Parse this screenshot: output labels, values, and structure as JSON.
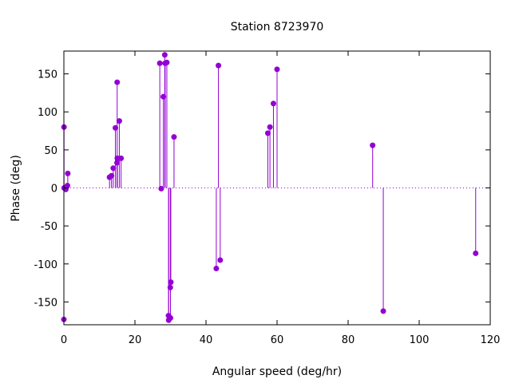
{
  "chart_data": {
    "type": "scatter",
    "style": "impulses-with-points",
    "title": "Station 8723970",
    "xlabel": "Angular speed (deg/hr)",
    "ylabel": "Phase (deg)",
    "xlim": [
      0,
      120
    ],
    "ylim": [
      -180,
      180
    ],
    "xticks": [
      0,
      20,
      40,
      60,
      80,
      100,
      120
    ],
    "yticks": [
      -150,
      -100,
      -50,
      0,
      50,
      100,
      150
    ],
    "zero_line": "dotted",
    "grid": false,
    "legend": "none",
    "color": "#9400d3",
    "points": [
      {
        "x": 0.0,
        "y": -173
      },
      {
        "x": 0.04,
        "y": 80
      },
      {
        "x": 0.08,
        "y": 0
      },
      {
        "x": 0.5,
        "y": -1
      },
      {
        "x": 0.55,
        "y": -2
      },
      {
        "x": 1.0,
        "y": 3
      },
      {
        "x": 1.1,
        "y": 19
      },
      {
        "x": 12.85,
        "y": 14
      },
      {
        "x": 13.4,
        "y": 16
      },
      {
        "x": 13.9,
        "y": 26
      },
      {
        "x": 14.5,
        "y": 79
      },
      {
        "x": 14.96,
        "y": 33
      },
      {
        "x": 15.0,
        "y": 139
      },
      {
        "x": 15.04,
        "y": 39
      },
      {
        "x": 15.6,
        "y": 88
      },
      {
        "x": 16.1,
        "y": 39
      },
      {
        "x": 27.0,
        "y": 164
      },
      {
        "x": 27.4,
        "y": -1
      },
      {
        "x": 28.0,
        "y": 120
      },
      {
        "x": 28.4,
        "y": 175
      },
      {
        "x": 28.5,
        "y": 164
      },
      {
        "x": 28.98,
        "y": 165
      },
      {
        "x": 29.45,
        "y": -168
      },
      {
        "x": 29.5,
        "y": -174
      },
      {
        "x": 29.95,
        "y": -131
      },
      {
        "x": 30.0,
        "y": -171
      },
      {
        "x": 30.1,
        "y": -124
      },
      {
        "x": 31.0,
        "y": 67
      },
      {
        "x": 42.9,
        "y": -106
      },
      {
        "x": 43.5,
        "y": 161
      },
      {
        "x": 44.0,
        "y": -95
      },
      {
        "x": 57.4,
        "y": 72
      },
      {
        "x": 58.0,
        "y": 80
      },
      {
        "x": 58.98,
        "y": 111
      },
      {
        "x": 60.0,
        "y": 156
      },
      {
        "x": 86.9,
        "y": 56
      },
      {
        "x": 89.9,
        "y": -162
      },
      {
        "x": 115.9,
        "y": -86
      }
    ]
  }
}
